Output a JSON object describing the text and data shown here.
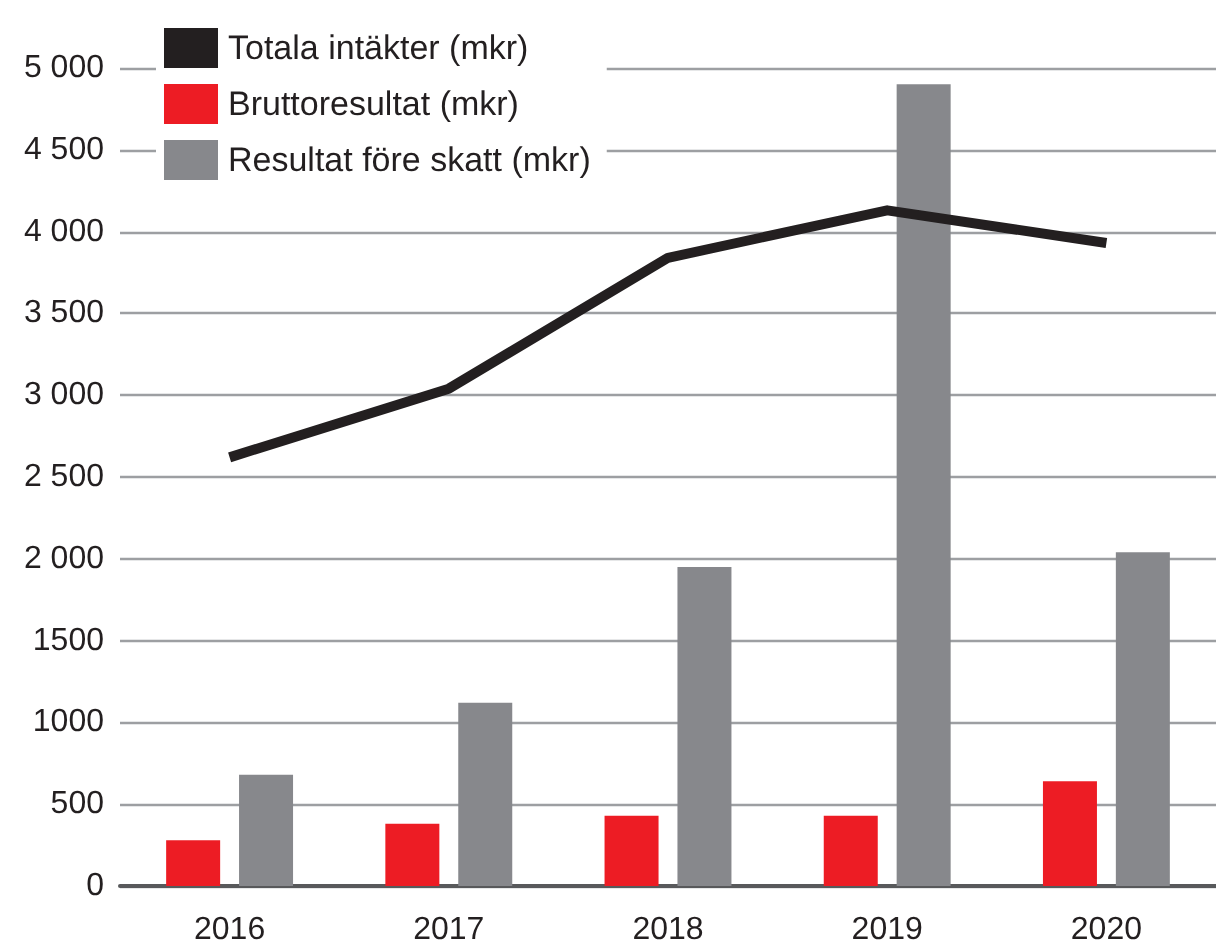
{
  "chart_data": {
    "type": "bar",
    "categories": [
      "2016",
      "2017",
      "2018",
      "2019",
      "2020"
    ],
    "series": [
      {
        "name": "Totala intäkter (mkr)",
        "type": "line",
        "color": "#231f20",
        "values": [
          2620,
          3040,
          3840,
          4130,
          3930
        ]
      },
      {
        "name": "Bruttoresultat (mkr)",
        "color": "#ed1c24",
        "values": [
          280,
          380,
          430,
          430,
          640
        ]
      },
      {
        "name": "Resultat före skatt (mkr)",
        "color": "#87888c",
        "values": [
          680,
          1120,
          1950,
          4900,
          2040
        ]
      }
    ],
    "ylim": [
      0,
      5000
    ],
    "yticks": [
      0,
      500,
      {
        "value": 1000,
        "label": "1000"
      },
      {
        "value": 1500,
        "label": "1500"
      },
      {
        "value": 2000,
        "label": "2 000"
      },
      {
        "value": 2500,
        "label": "2 500"
      },
      {
        "value": 3000,
        "label": "3 000"
      },
      {
        "value": 3500,
        "label": "3 500"
      },
      {
        "value": 4000,
        "label": "4 000"
      },
      {
        "value": 4500,
        "label": "4 500"
      },
      {
        "value": 5000,
        "label": "5 000"
      }
    ],
    "grid": "y",
    "legend": "top left",
    "marker": "none"
  }
}
